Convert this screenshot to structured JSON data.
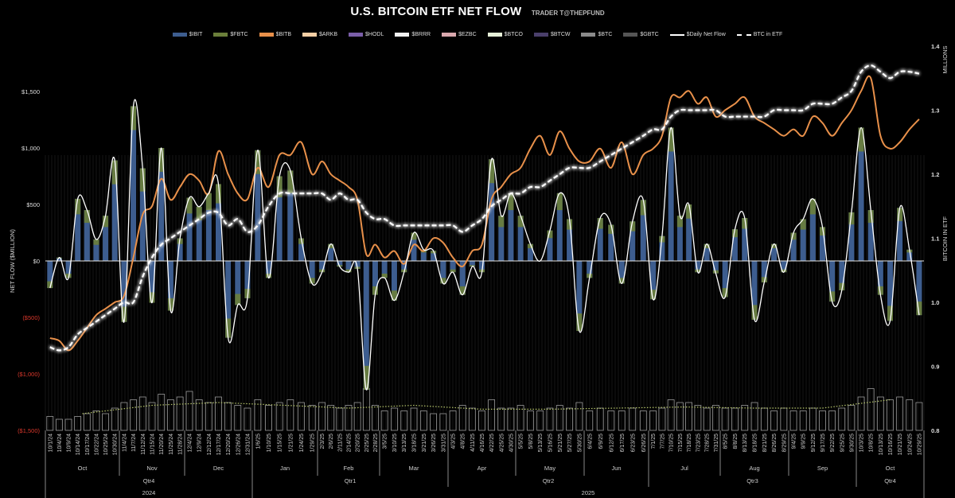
{
  "title": "U.S. BITCOIN ETF NET FLOW",
  "subtitle": "TRADER T@THEPFUND",
  "legend": [
    {
      "label": "$IBIT",
      "color": "#3d5d8f",
      "kind": "bar"
    },
    {
      "label": "$FBTC",
      "color": "#6b7f3a",
      "kind": "bar"
    },
    {
      "label": "$BITB",
      "color": "#e8904a",
      "kind": "bar"
    },
    {
      "label": "$ARKB",
      "color": "#f6cfa5",
      "kind": "bar"
    },
    {
      "label": "$HODL",
      "color": "#7a5ea8",
      "kind": "bar"
    },
    {
      "label": "$BRRR",
      "color": "#f2f2f2",
      "kind": "bar"
    },
    {
      "label": "$EZBC",
      "color": "#d9a7ad",
      "kind": "bar"
    },
    {
      "label": "$BTCO",
      "color": "#e6f0d8",
      "kind": "bar"
    },
    {
      "label": "$BTCW",
      "color": "#4a3f6b",
      "kind": "bar"
    },
    {
      "label": "$BTC",
      "color": "#8a8a8a",
      "kind": "bar"
    },
    {
      "label": "$GBTC",
      "color": "#555555",
      "kind": "bar"
    },
    {
      "label": "$Daily Net Flow",
      "color": "#ffffff",
      "kind": "line"
    },
    {
      "label": "BTC in ETF",
      "color": "#ffffff",
      "kind": "dashed"
    }
  ],
  "chart_data": {
    "type": "bar",
    "title": "U.S. BITCOIN ETF NET FLOW",
    "ylabel": "NET FLOW ($MILLION)",
    "y2label": "BITCOIN IN ETF",
    "y2unit": "MILLIONS",
    "ylim": [
      -1500,
      1500
    ],
    "y2lim": [
      0.8,
      1.4
    ],
    "yticks": [
      "$1,500",
      "$1,000",
      "$500",
      "$0",
      "($500)",
      "($1,000)",
      "($1,500)"
    ],
    "yticks_values": [
      1500,
      1000,
      500,
      0,
      -500,
      -1000,
      -1500
    ],
    "y2ticks": [
      "1.4",
      "1.3",
      "1.2",
      "1.1",
      "1.0",
      "0.9",
      "0.8"
    ],
    "y2ticks_values": [
      1.4,
      1.3,
      1.2,
      1.1,
      1.0,
      0.9,
      0.8
    ],
    "negative_color": "#d9372b",
    "grid": false,
    "legend_position": "top",
    "years": [
      {
        "label": "2024",
        "months": 3
      },
      {
        "label": "2025",
        "months": 10
      }
    ],
    "quarters": [
      {
        "label": "Qtr4",
        "months": 3
      },
      {
        "label": "Qtr1",
        "months": 3
      },
      {
        "label": "Qtr2",
        "months": 3
      },
      {
        "label": "Qtr3",
        "months": 3
      },
      {
        "label": "Qtr4",
        "months": 1
      }
    ],
    "months": [
      {
        "label": "Oct",
        "dates": [
          "10/1/24",
          "10/4/24",
          "10/9/24",
          "10/14/24",
          "10/17/24",
          "10/22/24",
          "10/25/24",
          "10/30/24"
        ]
      },
      {
        "label": "Nov",
        "dates": [
          "11/4/24",
          "11/7/24",
          "11/12/24",
          "11/15/24",
          "11/20/24",
          "11/25/24",
          "11/28/24"
        ]
      },
      {
        "label": "Dec",
        "dates": [
          "12/4/24",
          "12/9/24",
          "12/12/24",
          "12/17/24",
          "12/20/24",
          "12/26/24",
          "12/31/24"
        ]
      },
      {
        "label": "Jan",
        "dates": [
          "1/6/25",
          "1/10/25",
          "1/15/25",
          "1/21/25",
          "1/24/25",
          "1/29/25"
        ]
      },
      {
        "label": "Feb",
        "dates": [
          "2/3/25",
          "2/6/25",
          "2/11/25",
          "2/14/25",
          "2/20/25",
          "2/25/25",
          "2/28/25"
        ]
      },
      {
        "label": "Mar",
        "dates": [
          "3/5/25",
          "3/10/25",
          "3/13/25",
          "3/18/25",
          "3/21/25",
          "3/26/25",
          "3/31/25"
        ]
      },
      {
        "label": "Apr",
        "dates": [
          "4/3/25",
          "4/8/25",
          "4/11/25",
          "4/16/25",
          "4/22/25",
          "4/25/25",
          "4/30/25"
        ]
      },
      {
        "label": "May",
        "dates": [
          "5/5/25",
          "5/8/25",
          "5/13/25",
          "5/16/25",
          "5/21/25",
          "5/27/25",
          "5/30/25"
        ]
      },
      {
        "label": "Jun",
        "dates": [
          "6/4/25",
          "6/9/25",
          "6/12/25",
          "6/17/25",
          "6/23/25",
          "6/26/25"
        ]
      },
      {
        "label": "Jul",
        "dates": [
          "7/1/25",
          "7/7/25",
          "7/10/25",
          "7/15/25",
          "7/18/25",
          "7/23/25",
          "7/28/25",
          "7/31/25"
        ]
      },
      {
        "label": "Aug",
        "dates": [
          "8/5/25",
          "8/8/25",
          "8/13/25",
          "8/18/25",
          "8/21/25",
          "8/26/25",
          "8/29/25"
        ]
      },
      {
        "label": "Sep",
        "dates": [
          "9/4/25",
          "9/9/25",
          "9/12/25",
          "9/17/25",
          "9/22/25",
          "9/25/25",
          "9/30/25"
        ]
      },
      {
        "label": "Oct",
        "dates": [
          "10/3/25",
          "10/8/25",
          "10/13/25",
          "10/16/25",
          "10/21/25",
          "10/24/25",
          "10/29/25"
        ]
      }
    ],
    "series": [
      {
        "name": "$Daily Net Flow",
        "axis": "left",
        "values": [
          -240,
          30,
          -150,
          550,
          450,
          190,
          400,
          890,
          -540,
          1370,
          820,
          -370,
          1000,
          -440,
          200,
          560,
          480,
          600,
          680,
          -680,
          -390,
          -330,
          980,
          -150,
          750,
          800,
          200,
          -200,
          -100,
          150,
          -50,
          -100,
          -70,
          -1140,
          -300,
          -150,
          -350,
          -100,
          250,
          100,
          90,
          -200,
          -100,
          -300,
          -50,
          -100,
          900,
          400,
          600,
          400,
          150,
          0,
          270,
          600,
          370,
          -620,
          -150,
          380,
          320,
          -200,
          350,
          540,
          -340,
          220,
          1180,
          400,
          500,
          -100,
          150,
          -110,
          -320,
          280,
          380,
          -520,
          -190,
          150,
          -100,
          250,
          370,
          550,
          300,
          -360,
          -260,
          430,
          1180,
          450,
          -300,
          -530,
          470,
          100,
          -480
        ]
      },
      {
        "name": "BTC in ETF",
        "axis": "right",
        "values": [
          0.93,
          0.925,
          0.93,
          0.95,
          0.96,
          0.97,
          0.98,
          0.99,
          1.0,
          1.0,
          1.04,
          1.07,
          1.09,
          1.1,
          1.11,
          1.12,
          1.13,
          1.14,
          1.14,
          1.12,
          1.13,
          1.11,
          1.12,
          1.15,
          1.17,
          1.17,
          1.17,
          1.17,
          1.17,
          1.16,
          1.17,
          1.16,
          1.16,
          1.14,
          1.13,
          1.13,
          1.12,
          1.12,
          1.12,
          1.12,
          1.12,
          1.12,
          1.12,
          1.11,
          1.12,
          1.13,
          1.15,
          1.16,
          1.17,
          1.17,
          1.18,
          1.18,
          1.19,
          1.2,
          1.21,
          1.21,
          1.21,
          1.22,
          1.23,
          1.24,
          1.25,
          1.26,
          1.27,
          1.27,
          1.29,
          1.3,
          1.3,
          1.3,
          1.3,
          1.3,
          1.29,
          1.29,
          1.29,
          1.29,
          1.29,
          1.3,
          1.3,
          1.3,
          1.3,
          1.31,
          1.31,
          1.31,
          1.32,
          1.33,
          1.36,
          1.37,
          1.36,
          1.35,
          1.36,
          1.36,
          1.357
        ]
      },
      {
        "axis": "right",
        "color": "#e8904a",
        "values": [
          0.944,
          0.94,
          0.925,
          0.94,
          0.96,
          0.98,
          0.99,
          1.0,
          1.01,
          1.07,
          1.137,
          1.15,
          1.193,
          1.16,
          1.18,
          1.2,
          1.19,
          1.17,
          1.236,
          1.2,
          1.17,
          1.161,
          1.21,
          1.18,
          1.23,
          1.23,
          1.25,
          1.2,
          1.22,
          1.2,
          1.19,
          1.18,
          1.16,
          1.075,
          1.09,
          1.07,
          1.08,
          1.06,
          1.09,
          1.08,
          1.1,
          1.093,
          1.07,
          1.056,
          1.08,
          1.09,
          1.161,
          1.18,
          1.2,
          1.21,
          1.24,
          1.26,
          1.23,
          1.267,
          1.24,
          1.22,
          1.22,
          1.24,
          1.21,
          1.25,
          1.2,
          1.23,
          1.24,
          1.26,
          1.32,
          1.32,
          1.33,
          1.31,
          1.32,
          1.29,
          1.3,
          1.31,
          1.32,
          1.29,
          1.28,
          1.27,
          1.26,
          1.27,
          1.26,
          1.29,
          1.28,
          1.26,
          1.28,
          1.3,
          1.33,
          1.35,
          1.26,
          1.24,
          1.25,
          1.27,
          1.286
        ]
      }
    ],
    "activity_bars": {
      "values": [
        0.25,
        0.2,
        0.2,
        0.25,
        0.3,
        0.35,
        0.3,
        0.4,
        0.5,
        0.55,
        0.6,
        0.5,
        0.65,
        0.55,
        0.6,
        0.7,
        0.55,
        0.5,
        0.6,
        0.5,
        0.45,
        0.4,
        0.55,
        0.45,
        0.5,
        0.55,
        0.5,
        0.45,
        0.5,
        0.45,
        0.4,
        0.45,
        0.5,
        0.75,
        0.45,
        0.35,
        0.4,
        0.35,
        0.4,
        0.35,
        0.3,
        0.3,
        0.35,
        0.45,
        0.4,
        0.35,
        0.55,
        0.4,
        0.4,
        0.45,
        0.35,
        0.35,
        0.4,
        0.45,
        0.4,
        0.5,
        0.35,
        0.4,
        0.35,
        0.35,
        0.4,
        0.35,
        0.35,
        0.4,
        0.55,
        0.5,
        0.5,
        0.45,
        0.4,
        0.45,
        0.4,
        0.4,
        0.45,
        0.5,
        0.4,
        0.35,
        0.4,
        0.35,
        0.35,
        0.4,
        0.35,
        0.35,
        0.4,
        0.45,
        0.6,
        0.75,
        0.6,
        0.55,
        0.6,
        0.55,
        0.5
      ],
      "average": [
        0.3,
        0.45,
        0.5,
        0.45,
        0.4,
        0.45,
        0.38,
        0.38,
        0.4,
        0.42,
        0.4,
        0.4,
        0.55
      ],
      "average_color": "#b5c46a"
    }
  }
}
